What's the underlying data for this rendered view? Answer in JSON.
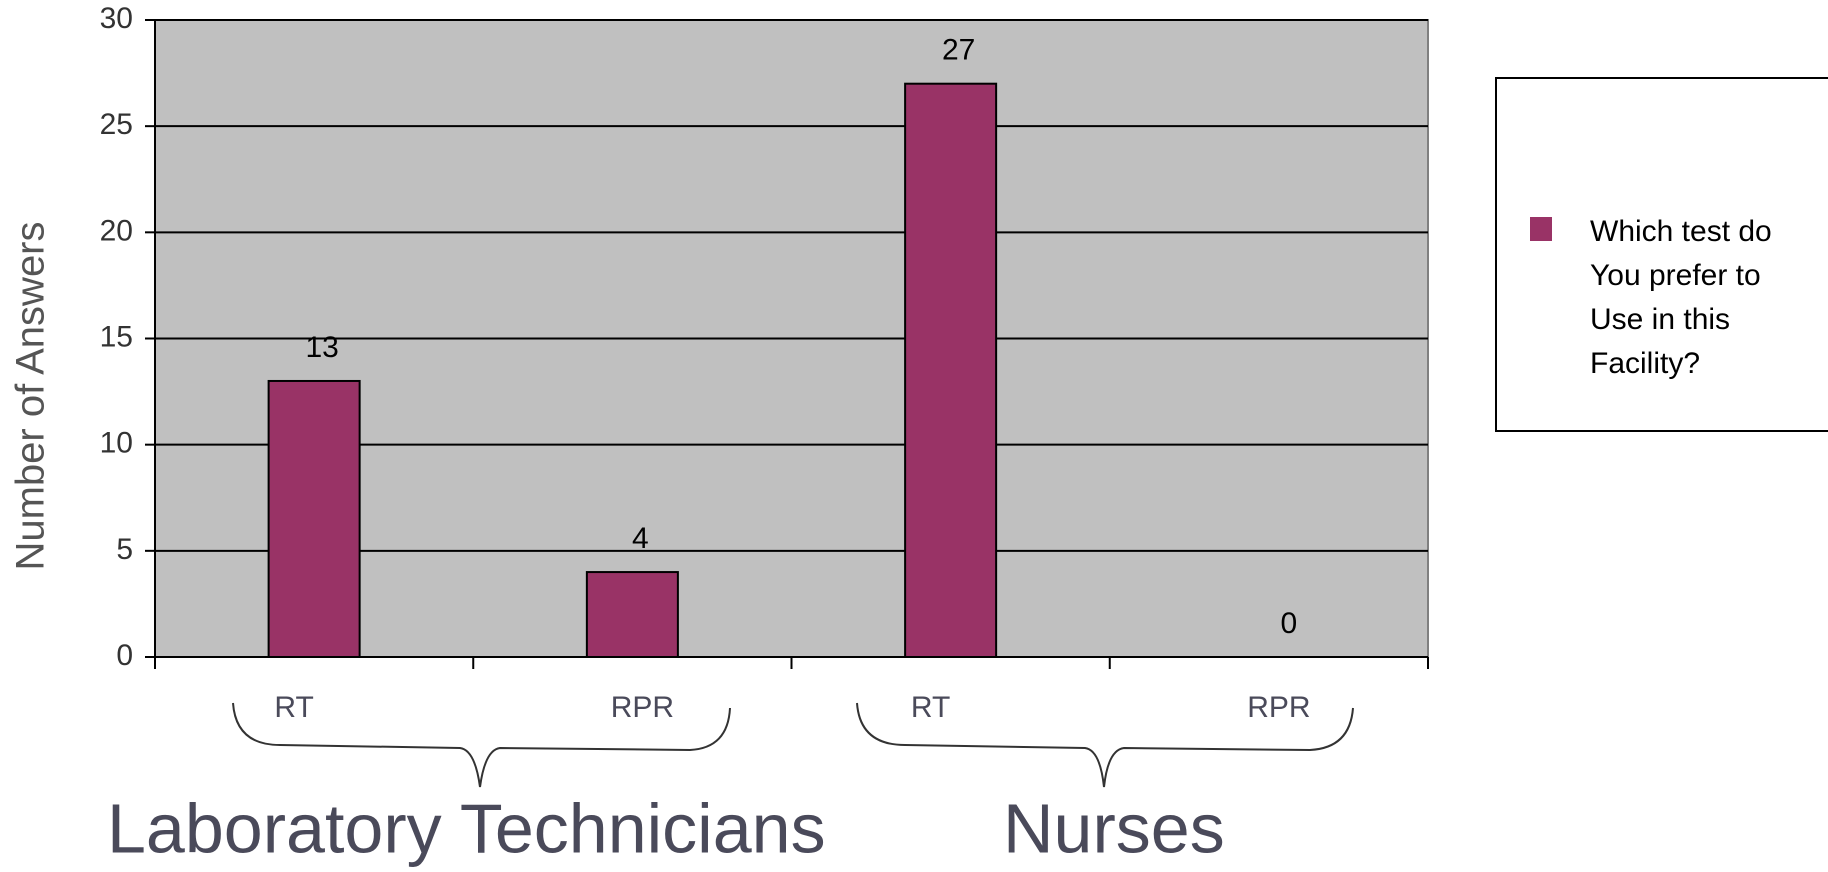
{
  "chart_data": {
    "type": "bar",
    "y_label": "Number of Answers",
    "categories": [
      "RT",
      "RPR",
      "RT",
      "RPR"
    ],
    "group_labels": [
      "Laboratory Technicians",
      "Nurses"
    ],
    "series": [
      {
        "name": "Which test do You prefer to Use in this Facility?",
        "color": "#993366",
        "values": [
          13,
          4,
          27,
          0
        ]
      }
    ],
    "ylim": [
      0,
      30
    ],
    "yticks": [
      0,
      5,
      10,
      15,
      20,
      25,
      30
    ],
    "grid": true,
    "legend": "right",
    "plot_background": "#c0c0c0"
  }
}
